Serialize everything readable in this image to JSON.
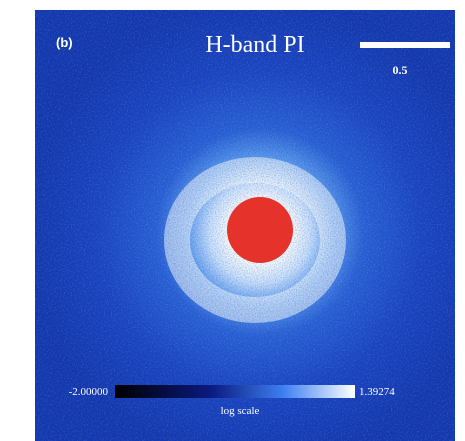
{
  "panel_label": "(b)",
  "title": "H-band PI",
  "scale_bar": {
    "label": "0.5"
  },
  "colorbar": {
    "min_label": "-2.00000",
    "max_label": "1.39274",
    "caption": "log scale"
  }
}
